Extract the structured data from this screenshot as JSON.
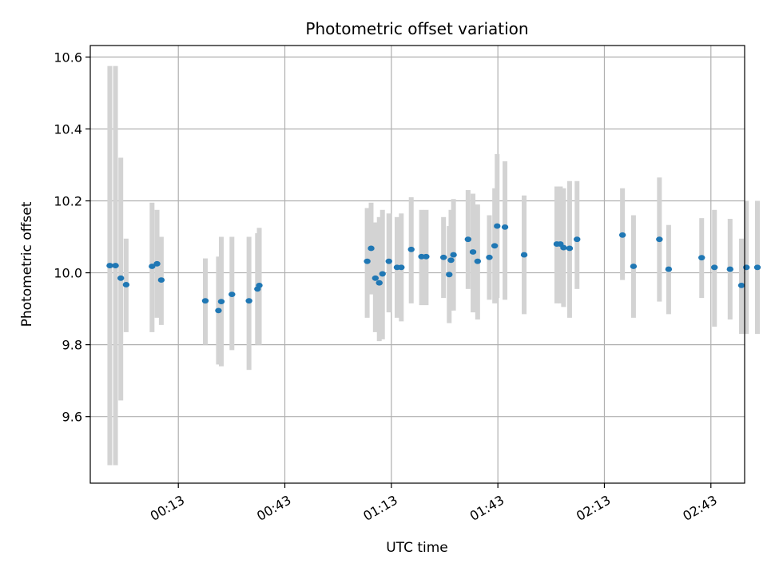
{
  "chart_data": {
    "type": "scatter",
    "title": "Photometric offset variation",
    "xlabel": "UTC time",
    "ylabel": "Photometric offset",
    "x_tick_labels": [
      "00:13",
      "00:43",
      "01:13",
      "01:43",
      "02:13",
      "02:43"
    ],
    "x_tick_values_min": [
      13,
      43,
      73,
      103,
      133,
      163
    ],
    "xlim_min": [
      -11.8,
      172.5
    ],
    "y_tick_values": [
      9.6,
      9.8,
      10.0,
      10.2,
      10.4,
      10.6
    ],
    "y_tick_labels": [
      "9.6",
      "9.8",
      "10.0",
      "10.2",
      "10.4",
      "10.6"
    ],
    "ylim": [
      9.415,
      10.632
    ],
    "grid": true,
    "colors": {
      "marker": "#1f77b4",
      "errorbar": "#d3d3d3",
      "grid": "#b0b0b0"
    },
    "series": [
      {
        "x_min": [
          -6.3,
          -4.7,
          -3.2,
          -1.7,
          5.6,
          7.0,
          8.2,
          20.6,
          24.3,
          25.1,
          28.1,
          32.9,
          35.3,
          35.8,
          66.2,
          67.3,
          68.5,
          69.6,
          70.5,
          72.3,
          74.6,
          75.8,
          78.6,
          81.5,
          82.8,
          87.7,
          89.3,
          89.8,
          90.5,
          94.6,
          96.0,
          97.3,
          100.6,
          102.1,
          102.8,
          105.0,
          110.4,
          119.6,
          120.6,
          121.5,
          123.2,
          125.3,
          138.1,
          141.2,
          148.5,
          151.1,
          160.4,
          164.0,
          168.4,
          171.6,
          173.0,
          176.1
        ],
        "y": [
          10.02,
          10.02,
          9.985,
          9.967,
          10.018,
          10.025,
          9.98,
          9.922,
          9.895,
          9.92,
          9.94,
          9.922,
          9.955,
          9.965,
          10.032,
          10.068,
          9.985,
          9.972,
          9.997,
          10.032,
          10.015,
          10.015,
          10.065,
          10.045,
          10.045,
          10.043,
          9.995,
          10.035,
          10.05,
          10.093,
          10.058,
          10.032,
          10.043,
          10.075,
          10.13,
          10.127,
          10.05,
          10.08,
          10.08,
          10.07,
          10.068,
          10.093,
          10.105,
          10.018,
          10.093,
          10.01,
          10.042,
          10.015,
          10.01,
          9.965,
          10.015,
          10.015
        ],
        "y_err_low": [
          9.465,
          9.465,
          9.645,
          9.835,
          9.835,
          9.875,
          9.855,
          9.8,
          9.745,
          9.74,
          9.785,
          9.73,
          9.8,
          9.8,
          9.875,
          9.94,
          9.835,
          9.81,
          9.815,
          9.89,
          9.875,
          9.865,
          9.915,
          9.91,
          9.91,
          9.93,
          9.86,
          9.895,
          9.895,
          9.955,
          9.89,
          9.87,
          9.925,
          9.915,
          9.93,
          9.925,
          9.885,
          9.915,
          9.915,
          9.905,
          9.875,
          9.955,
          9.98,
          9.875,
          9.92,
          9.885,
          9.93,
          9.85,
          9.87,
          9.83,
          9.83,
          9.83
        ],
        "y_err_high": [
          10.575,
          10.575,
          10.32,
          10.095,
          10.195,
          10.175,
          10.1,
          10.04,
          10.045,
          10.1,
          10.1,
          10.1,
          10.11,
          10.125,
          10.18,
          10.195,
          10.14,
          10.155,
          10.175,
          10.165,
          10.155,
          10.165,
          10.21,
          10.175,
          10.175,
          10.155,
          10.13,
          10.175,
          10.205,
          10.23,
          10.22,
          10.19,
          10.16,
          10.235,
          10.33,
          10.31,
          10.215,
          10.24,
          10.24,
          10.235,
          10.255,
          10.255,
          10.235,
          10.16,
          10.265,
          10.133,
          10.152,
          10.175,
          10.15,
          10.095,
          10.2,
          10.2
        ]
      }
    ]
  }
}
